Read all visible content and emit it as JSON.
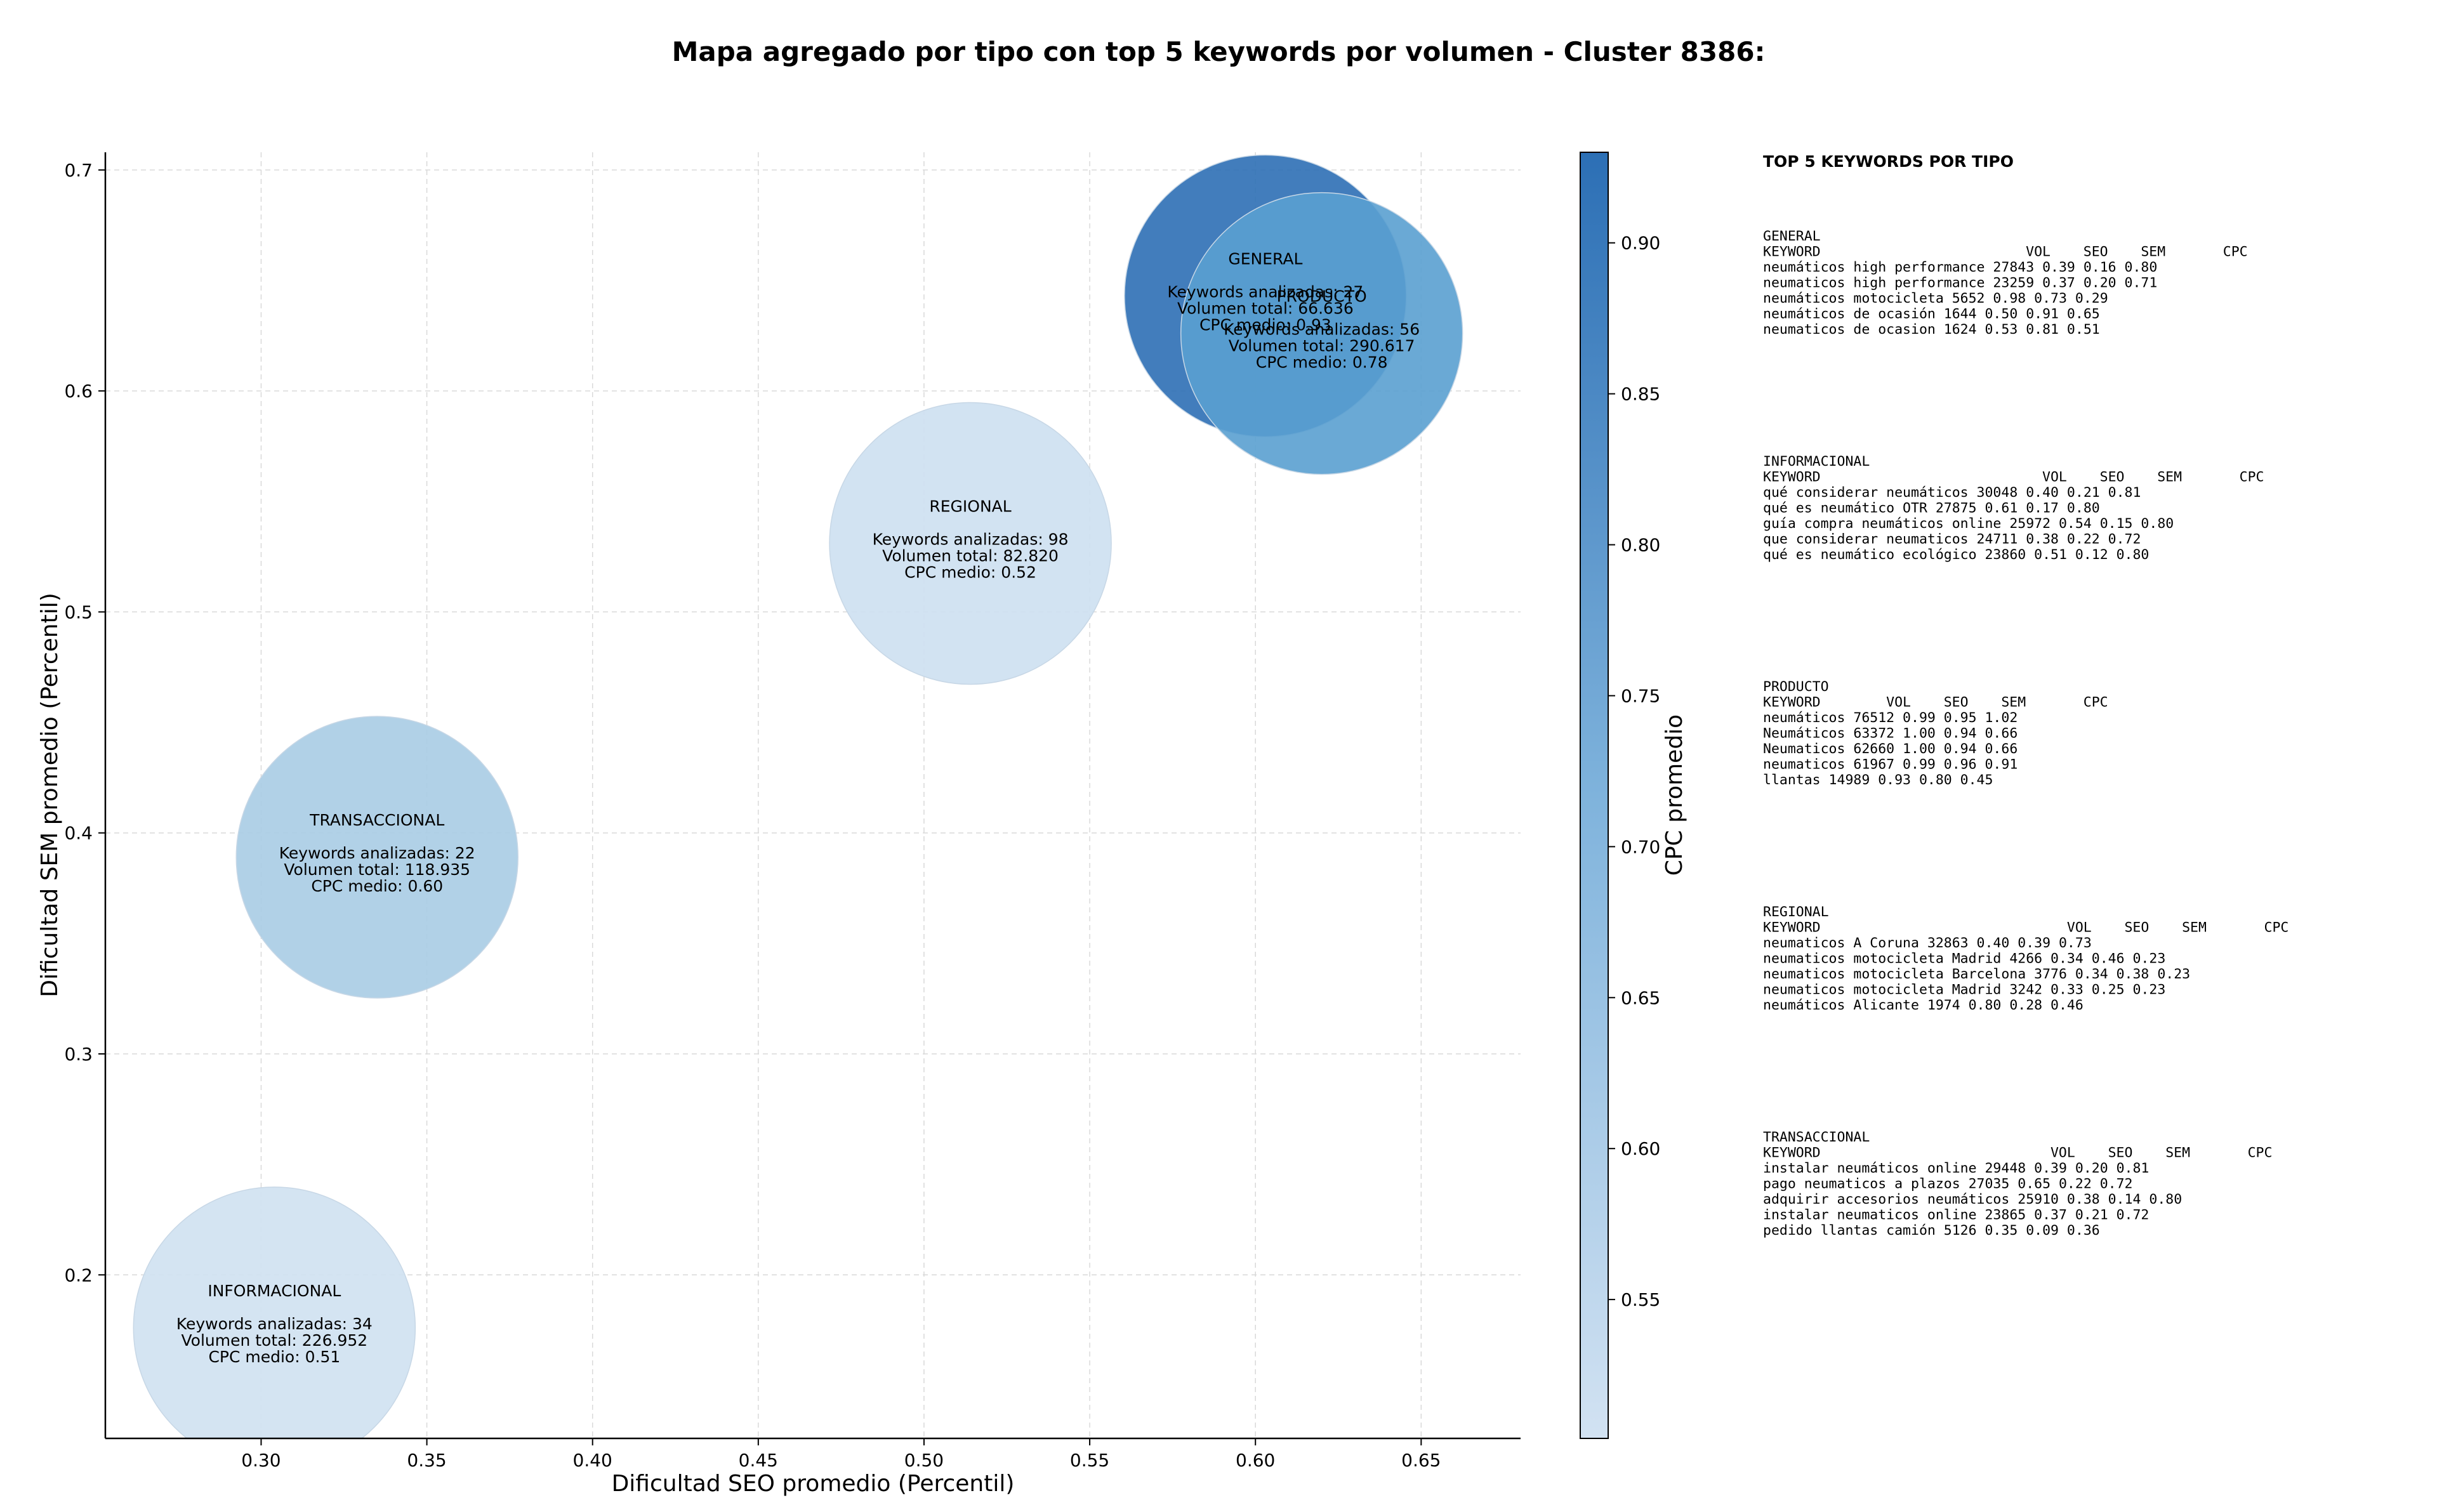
{
  "chart_data": {
    "type": "scatter",
    "title": "Mapa agregado por tipo con top 5 keywords por volumen - Cluster 8386:",
    "xlabel": "Dificultad SEO promedio (Percentil)",
    "ylabel": "Dificultad SEM promedio (Percentil)",
    "xlim": [
      0.253,
      0.68
    ],
    "ylim": [
      0.126,
      0.708
    ],
    "xticks": [
      "0.30",
      "0.35",
      "0.40",
      "0.45",
      "0.50",
      "0.55",
      "0.60",
      "0.65"
    ],
    "yticks": [
      "0.2",
      "0.3",
      "0.4",
      "0.5",
      "0.6",
      "0.7"
    ],
    "grid": true,
    "colorbar": {
      "label": "CPC promedio",
      "range": [
        0.504,
        0.93
      ],
      "ticks": [
        "0.55",
        "0.60",
        "0.65",
        "0.70",
        "0.75",
        "0.80",
        "0.85",
        "0.90"
      ],
      "color_low": "#d2e2f2",
      "color_high": "#2c6fb5"
    },
    "bubble_line_labels": [
      "Keywords analizadas",
      "Volumen total",
      "CPC medio"
    ],
    "bubbles": [
      {
        "tipo": "INFORMACIONAL",
        "seo": 0.304,
        "sem": 0.176,
        "keywords": "34",
        "volumen": "226.952",
        "cpc": "0.51",
        "cpc_value": 0.51,
        "color": "#cfe1f1"
      },
      {
        "tipo": "TRANSACCIONAL",
        "seo": 0.335,
        "sem": 0.389,
        "keywords": "22",
        "volumen": "118.935",
        "cpc": "0.60",
        "cpc_value": 0.6,
        "color": "#a9cce4"
      },
      {
        "tipo": "REGIONAL",
        "seo": 0.514,
        "sem": 0.531,
        "keywords": "98",
        "volumen": "82.820",
        "cpc": "0.52",
        "cpc_value": 0.52,
        "color": "#cde0f1"
      },
      {
        "tipo": "GENERAL",
        "seo": 0.603,
        "sem": 0.643,
        "keywords": "27",
        "volumen": "66.636",
        "cpc": "0.93",
        "cpc_value": 0.93,
        "color": "#2d6fb5"
      },
      {
        "tipo": "PRODUCTO",
        "seo": 0.62,
        "sem": 0.626,
        "keywords": "56",
        "volumen": "290.617",
        "cpc": "0.78",
        "cpc_value": 0.78,
        "color": "#5aa0d0"
      }
    ]
  },
  "panel": {
    "heading": "TOP 5 KEYWORDS POR TIPO",
    "columns": [
      "KEYWORD",
      "VOL",
      "SEO",
      "SEM",
      "CPC"
    ],
    "groups": [
      {
        "name": "GENERAL",
        "rows": [
          [
            "neumáticos high performance",
            "27843",
            "0.39",
            "0.16",
            "0.80"
          ],
          [
            "neumaticos high performance",
            "23259",
            "0.37",
            "0.20",
            "0.71"
          ],
          [
            "neumáticos motocicleta",
            "5652",
            "0.98",
            "0.73",
            "0.29"
          ],
          [
            "neumáticos de ocasión",
            "1644",
            "0.50",
            "0.91",
            "0.65"
          ],
          [
            "neumaticos de ocasion",
            "1624",
            "0.53",
            "0.81",
            "0.51"
          ]
        ]
      },
      {
        "name": "INFORMACIONAL",
        "rows": [
          [
            "qué considerar neumáticos",
            "30048",
            "0.40",
            "0.21",
            "0.81"
          ],
          [
            "qué es neumático OTR",
            "27875",
            "0.61",
            "0.17",
            "0.80"
          ],
          [
            "guía compra neumáticos online",
            "25972",
            "0.54",
            "0.15",
            "0.80"
          ],
          [
            "que considerar neumaticos",
            "24711",
            "0.38",
            "0.22",
            "0.72"
          ],
          [
            "qué es neumático ecológico",
            "23860",
            "0.51",
            "0.12",
            "0.80"
          ]
        ]
      },
      {
        "name": "PRODUCTO",
        "rows": [
          [
            "neumáticos",
            "76512",
            "0.99",
            "0.95",
            "1.02"
          ],
          [
            "Neumáticos",
            "63372",
            "1.00",
            "0.94",
            "0.66"
          ],
          [
            "Neumaticos",
            "62660",
            "1.00",
            "0.94",
            "0.66"
          ],
          [
            "neumaticos",
            "61967",
            "0.99",
            "0.96",
            "0.91"
          ],
          [
            "llantas",
            "14989",
            "0.93",
            "0.80",
            "0.45"
          ]
        ]
      },
      {
        "name": "REGIONAL",
        "rows": [
          [
            "neumaticos A Coruna",
            "32863",
            "0.40",
            "0.39",
            "0.73"
          ],
          [
            "neumaticos motocicleta Madrid",
            "4266",
            "0.34",
            "0.46",
            "0.23"
          ],
          [
            "neumaticos motocicleta Barcelona",
            "3776",
            "0.34",
            "0.38",
            "0.23"
          ],
          [
            "neumaticos motocicleta Madrid",
            "3242",
            "0.33",
            "0.25",
            "0.23"
          ],
          [
            "neumáticos Alicante",
            "1974",
            "0.80",
            "0.28",
            "0.46"
          ]
        ]
      },
      {
        "name": "TRANSACCIONAL",
        "rows": [
          [
            "instalar neumáticos online",
            "29448",
            "0.39",
            "0.20",
            "0.81"
          ],
          [
            "pago neumaticos a plazos",
            "27035",
            "0.65",
            "0.22",
            "0.72"
          ],
          [
            "adquirir accesorios neumáticos",
            "25910",
            "0.38",
            "0.14",
            "0.80"
          ],
          [
            "instalar neumaticos online",
            "23865",
            "0.37",
            "0.21",
            "0.72"
          ],
          [
            "pedido llantas camión",
            "5126",
            "0.35",
            "0.09",
            "0.36"
          ]
        ]
      }
    ]
  }
}
